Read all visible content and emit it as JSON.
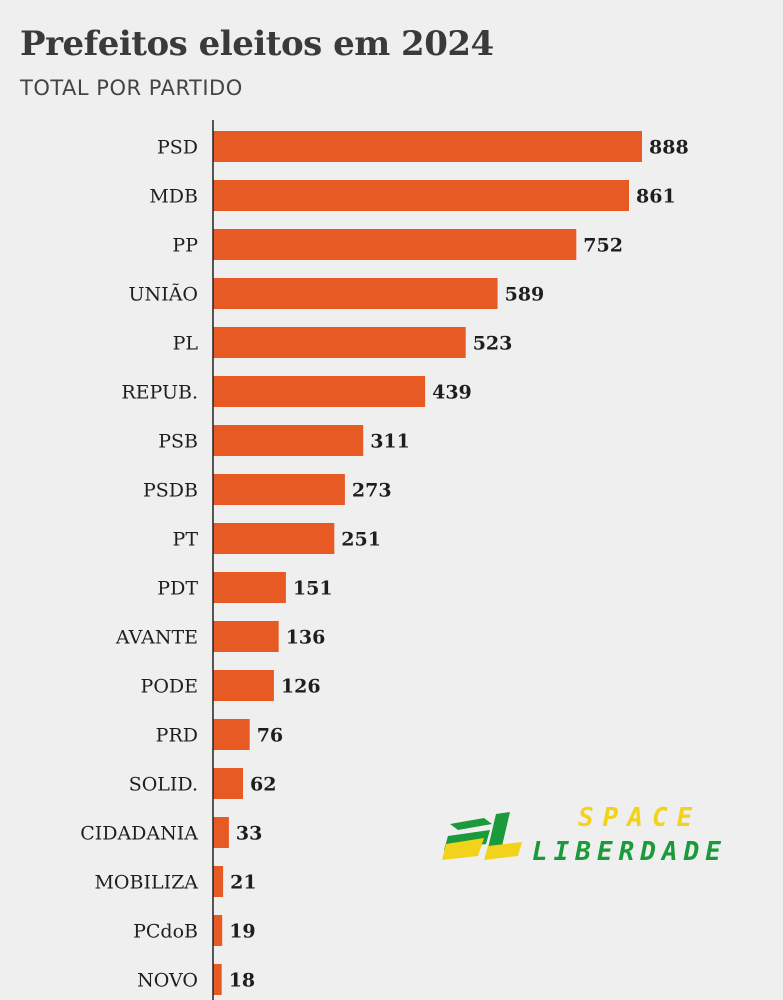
{
  "header": {
    "title": "Prefeitos eleitos em 2024",
    "subtitle": "TOTAL POR PARTIDO"
  },
  "logo": {
    "mark": "SL",
    "line1": "SPACE",
    "line2": "LIBERDADE",
    "colors": {
      "green": "#1a9a3a",
      "yellow": "#f2d21b"
    }
  },
  "chart_data": {
    "type": "bar",
    "orientation": "horizontal",
    "categories": [
      "PSD",
      "MDB",
      "PP",
      "UNIÃO",
      "PL",
      "REPUB.",
      "PSB",
      "PSDB",
      "PT",
      "PDT",
      "AVANTE",
      "PODE",
      "PRD",
      "SOLID.",
      "CIDADANIA",
      "MOBILIZA",
      "PCdoB",
      "NOVO"
    ],
    "values": [
      888,
      861,
      752,
      589,
      523,
      439,
      311,
      273,
      251,
      151,
      136,
      126,
      76,
      62,
      33,
      21,
      19,
      18
    ],
    "xlim": [
      0,
      888
    ],
    "grid": false,
    "bar_color": "#e85a24",
    "data_labels": true
  }
}
